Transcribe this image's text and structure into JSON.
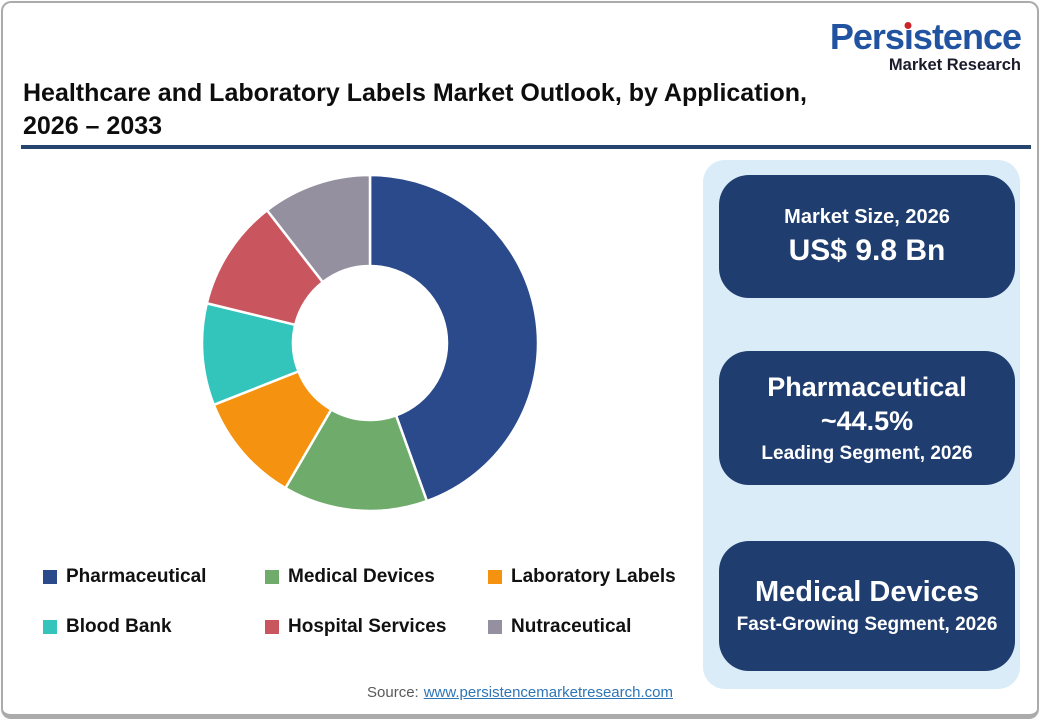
{
  "brand": {
    "name": "Persistence",
    "tagline": "Market Research",
    "colors": {
      "wordmark_blue": "#2253A0",
      "tagline_dark": "#1B1B2B",
      "dot_red": "#CC2229"
    }
  },
  "header": {
    "title_line1": "Healthcare and Laboratory Labels Market Outlook, by Application,",
    "title_line2": "2026 – 2033",
    "underline_color": "#26456E"
  },
  "chart_data": {
    "type": "pie",
    "subtype": "donut",
    "title": "Healthcare and Laboratory Labels Market Outlook, by Application, 2026 – 2033",
    "unit": "percent share, 2026",
    "start_angle_deg": 0,
    "direction": "clockwise",
    "inner_radius_ratio": 0.46,
    "legend_position": "bottom",
    "segments": [
      {
        "label": "Pharmaceutical",
        "value": 44.5,
        "color": "#2B4A8B"
      },
      {
        "label": "Medical Devices",
        "value": 13.9,
        "color": "#6FAC6C"
      },
      {
        "label": "Laboratory Labels",
        "value": 10.6,
        "color": "#F5920F"
      },
      {
        "label": "Blood Bank",
        "value": 9.8,
        "color": "#33C4BC"
      },
      {
        "label": "Hospital Services",
        "value": 10.7,
        "color": "#C9565F"
      },
      {
        "label": "Nutraceutical",
        "value": 10.5,
        "color": "#9490A0"
      }
    ]
  },
  "panel": {
    "background": "#D9ECF7",
    "card_background": "#1F3D6F",
    "cards": [
      {
        "line1": "Market Size, 2026",
        "line2": "US$ 9.8 Bn"
      },
      {
        "line1": "Pharmaceutical",
        "line2": "~44.5%",
        "line3": "Leading Segment, 2026"
      },
      {
        "line1": "Medical Devices",
        "line2": "Fast-Growing Segment, 2026"
      }
    ]
  },
  "footer": {
    "source_label": "Source:",
    "source_link_text": "www.persistencemarketresearch.com",
    "link_color": "#2E75B6"
  }
}
